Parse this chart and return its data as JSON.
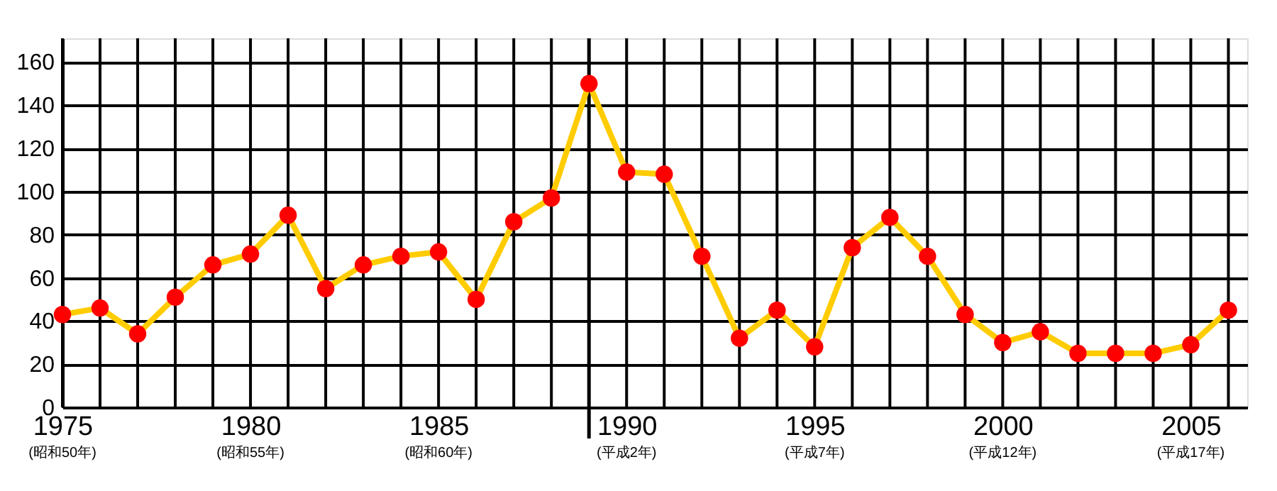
{
  "chart_data": {
    "type": "line",
    "x": [
      1975,
      1976,
      1977,
      1978,
      1979,
      1980,
      1981,
      1982,
      1983,
      1984,
      1985,
      1986,
      1987,
      1988,
      1989,
      1990,
      1991,
      1992,
      1993,
      1994,
      1995,
      1996,
      1997,
      1998,
      1999,
      2000,
      2001,
      2002,
      2003,
      2004,
      2005,
      2006
    ],
    "series": [
      {
        "color": "#ffcc00",
        "colors": [
          "#ff0000",
          "#ff0000",
          "#ff0000",
          "#ff0000",
          "#ff0000",
          "#ff0000",
          "#ff0000",
          "#ff0000",
          "#ff0000",
          "#ff0000",
          "#ff0000",
          "#ff0000",
          "#ff0000",
          "#ff0000",
          "#ff0000",
          "#ff0000",
          "#ff0000",
          "#ff0000",
          "#ff0000",
          "#ff0000",
          "#ff0000",
          "#ff0000",
          "#ff0000",
          "#ff0000",
          "#ff0000",
          "#ff0000",
          "#ff0000",
          "#ff0000",
          "#ff0000",
          "#ff0000",
          "#ff0000",
          "#ff0000"
        ],
        "values": [
          43,
          46,
          34,
          51,
          66,
          71,
          89,
          55,
          66,
          70,
          72,
          50,
          86,
          97,
          150,
          109,
          108,
          70,
          32,
          45,
          28,
          74,
          88,
          70,
          43,
          30,
          35,
          25,
          25,
          25,
          29,
          45
        ]
      }
    ],
    "xlim": [
      1975,
      2006.5
    ],
    "xticks": [
      1975,
      {
        "value": 1976,
        "label": null
      },
      {
        "value": 1977,
        "label": null
      },
      {
        "value": 1978,
        "label": null
      },
      {
        "value": 1979,
        "label": null
      },
      1980,
      {
        "value": 1981,
        "label": null
      },
      {
        "value": 1982,
        "label": null
      },
      {
        "value": 1983,
        "label": null
      },
      {
        "value": 1984,
        "label": null
      },
      1985,
      {
        "value": 1986,
        "label": null
      },
      {
        "value": 1987,
        "label": null
      },
      {
        "value": 1988,
        "label": null
      },
      {
        "value": 1989,
        "label": null
      },
      1990,
      {
        "value": 1991,
        "label": null
      },
      {
        "value": 1992,
        "label": null
      },
      {
        "value": 1993,
        "label": null
      },
      {
        "value": 1994,
        "label": null
      },
      1995,
      {
        "value": 1996,
        "label": null
      },
      {
        "value": 1997,
        "label": null
      },
      {
        "value": 1998,
        "label": null
      },
      {
        "value": 1999,
        "label": null
      },
      2000,
      {
        "value": 2001,
        "label": null
      },
      {
        "value": 2002,
        "label": null
      },
      {
        "value": 2003,
        "label": null
      },
      {
        "value": 2004,
        "label": null
      },
      2005,
      {
        "value": 2006,
        "label": null
      }
    ],
    "annotations": [
      "(昭和50年)",
      "(昭和55年)",
      "(昭和60年)",
      "(平成2年)",
      "(平成7年)",
      "(平成12年)",
      "(平成17年)"
    ],
    "ylim": [
      0,
      171
    ],
    "yticks": [
      0,
      20,
      40,
      60,
      80,
      100,
      120,
      140,
      160
    ],
    "ref_lines": [
      {
        "axis": "x",
        "value": 1989,
        "color": "#000000"
      }
    ],
    "grid": true,
    "marker": "circle",
    "line_style": "solid"
  }
}
